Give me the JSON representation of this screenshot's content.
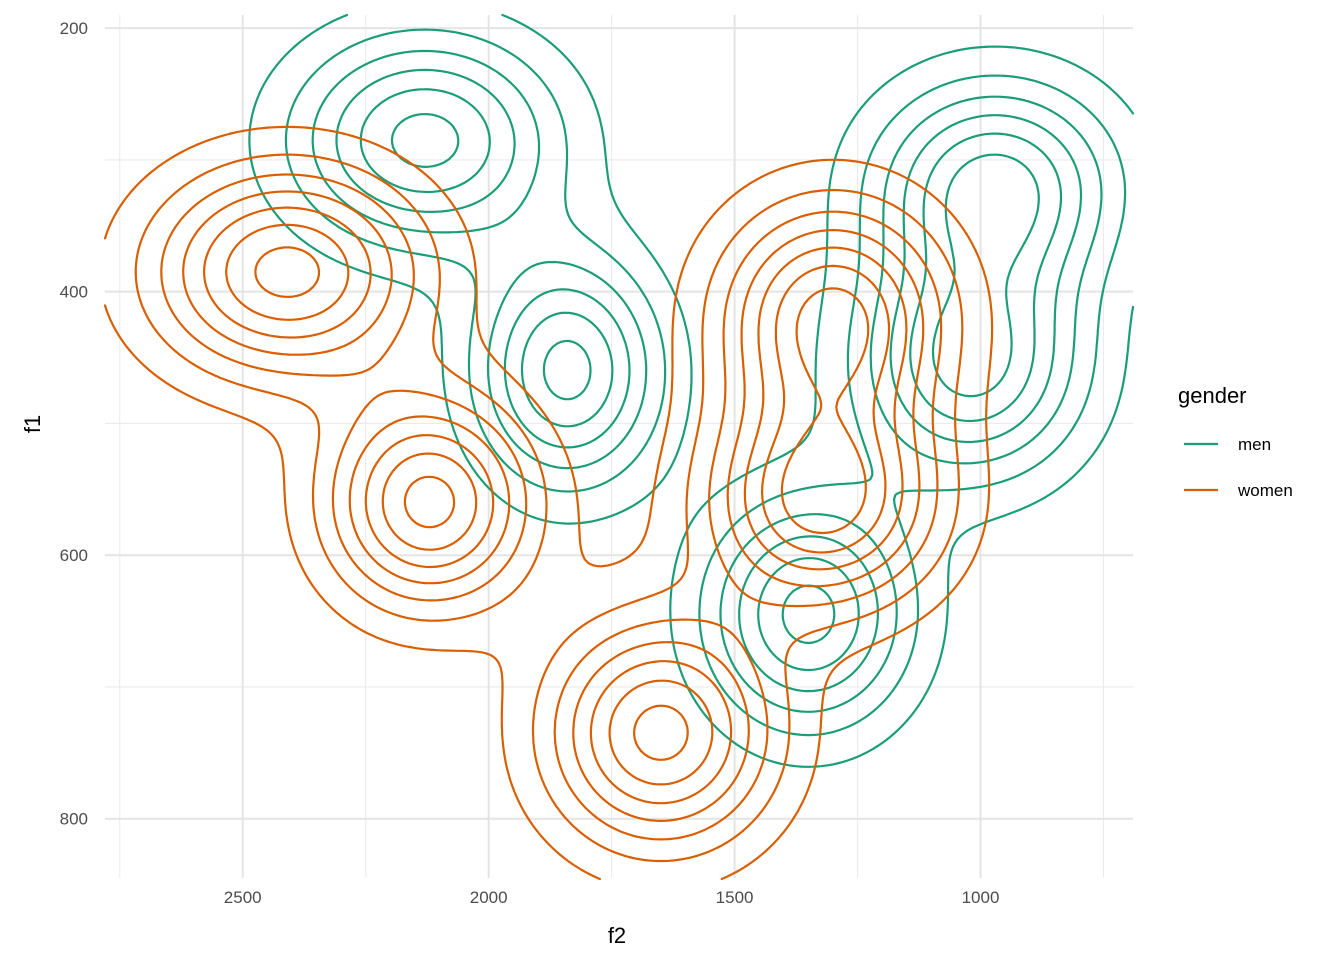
{
  "chart_data": {
    "type": "contour",
    "xlabel": "f2",
    "ylabel": "f1",
    "x_reversed": true,
    "y_reversed": true,
    "xlim": [
      2780,
      690
    ],
    "ylim": [
      190,
      845
    ],
    "x_ticks": [
      2500,
      2000,
      1500,
      1000
    ],
    "y_ticks": [
      200,
      400,
      600,
      800
    ],
    "grid": true,
    "legend": {
      "title": "gender",
      "position": "right",
      "entries": [
        {
          "label": "men",
          "color": "#1b9e77"
        },
        {
          "label": "women",
          "color": "#d95f02"
        }
      ]
    },
    "series": [
      {
        "name": "men",
        "color": "#1b9e77",
        "levels": 6,
        "peaks": [
          {
            "f2": 2130,
            "f1": 285,
            "sx": 185,
            "sy": 55
          },
          {
            "f2": 970,
            "f1": 320,
            "sx": 170,
            "sy": 55
          },
          {
            "f2": 1840,
            "f1": 460,
            "sx": 130,
            "sy": 60
          },
          {
            "f2": 1020,
            "f1": 455,
            "sx": 160,
            "sy": 60
          },
          {
            "f2": 1350,
            "f1": 645,
            "sx": 145,
            "sy": 60
          }
        ]
      },
      {
        "name": "women",
        "color": "#d95f02",
        "levels": 7,
        "peaks": [
          {
            "f2": 2410,
            "f1": 385,
            "sx": 190,
            "sy": 55
          },
          {
            "f2": 2120,
            "f1": 560,
            "sx": 145,
            "sy": 55
          },
          {
            "f2": 1300,
            "f1": 420,
            "sx": 160,
            "sy": 60
          },
          {
            "f2": 1320,
            "f1": 560,
            "sx": 165,
            "sy": 55
          },
          {
            "f2": 1650,
            "f1": 735,
            "sx": 160,
            "sy": 60
          }
        ]
      }
    ]
  }
}
